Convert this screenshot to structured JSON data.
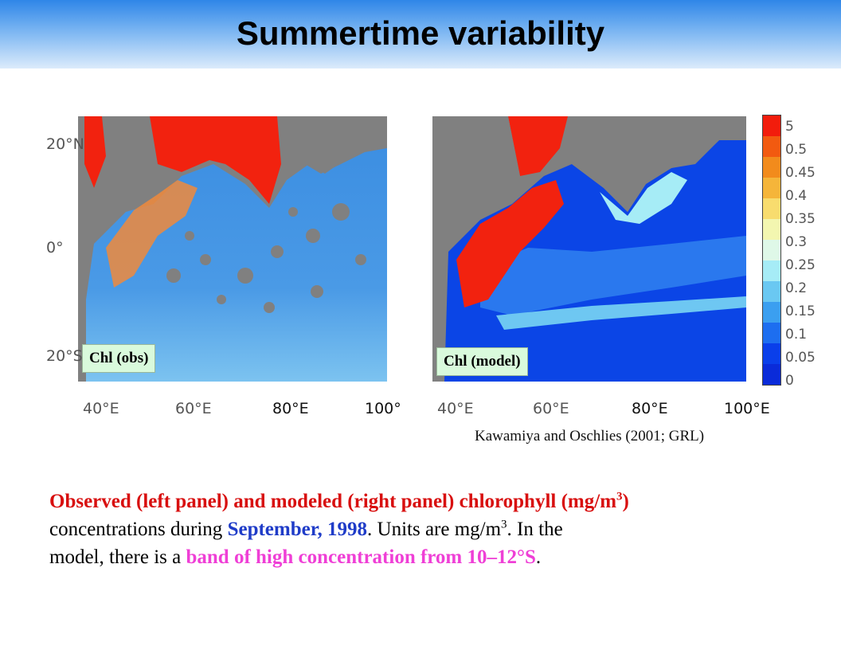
{
  "header": {
    "title": "Summertime variability"
  },
  "left_panel": {
    "y_ticks": [
      "20°N",
      "0°",
      "20°S"
    ],
    "x_ticks": [
      "40°E",
      "60°E",
      "80°E",
      "100°"
    ],
    "label": "Chl (obs)"
  },
  "right_panel": {
    "x_ticks": [
      "40°E",
      "60°E",
      "80°E",
      "100°E"
    ],
    "label": "Chl (model)"
  },
  "colorbar": {
    "ticks": [
      "5",
      "0.5",
      "0.45",
      "0.4",
      "0.35",
      "0.3",
      "0.25",
      "0.2",
      "0.15",
      "0.1",
      "0.05",
      "0"
    ],
    "colors": [
      "#f21c0c",
      "#f25a10",
      "#f28b1c",
      "#f5b53a",
      "#f8dc6e",
      "#f3f6b0",
      "#dff8e8",
      "#a6ecf6",
      "#6ac8f2",
      "#3b9ff0",
      "#1d6ef0",
      "#0a3fea",
      "#0a2bd9"
    ]
  },
  "credit": "Kawamiya and Oschlies (2001; GRL)",
  "caption": {
    "line1": "Observed (left panel) and modeled (right panel) chlorophyll (mg/m",
    "line1_sup": "3",
    "line1_end": ")",
    "line2_a": "concentrations during ",
    "line2_b": "September, 1998",
    "line2_c": ".  Units are mg/m",
    "line2_sup": "3",
    "line2_d": ".   In the",
    "line3_a": "model, there is a ",
    "line3_b": "band of high concentration from 10‒12°S",
    "line3_c": "."
  }
}
